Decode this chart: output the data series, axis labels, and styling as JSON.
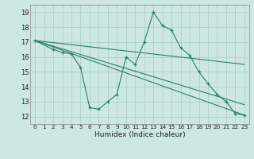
{
  "title": "",
  "xlabel": "Humidex (Indice chaleur)",
  "ylabel": "",
  "bg_color": "#cde8e3",
  "line_color": "#2a7d6e",
  "grid_color": "#afd4cc",
  "xlim": [
    -0.5,
    23.5
  ],
  "ylim": [
    11.5,
    19.5
  ],
  "xticks": [
    0,
    1,
    2,
    3,
    4,
    5,
    6,
    7,
    8,
    9,
    10,
    11,
    12,
    13,
    14,
    15,
    16,
    17,
    18,
    19,
    20,
    21,
    22,
    23
  ],
  "yticks": [
    12,
    13,
    14,
    15,
    16,
    17,
    18,
    19
  ],
  "series_main": {
    "x": [
      0,
      2,
      3,
      4,
      5,
      6,
      7,
      8,
      9,
      10,
      11,
      12,
      13,
      14,
      15,
      16,
      17,
      18,
      19,
      20,
      21,
      22,
      23
    ],
    "y": [
      17.1,
      16.5,
      16.3,
      16.2,
      15.3,
      12.6,
      12.5,
      13.0,
      13.5,
      16.0,
      15.5,
      17.0,
      19.0,
      18.1,
      17.8,
      16.6,
      16.1,
      15.0,
      14.2,
      13.5,
      13.0,
      12.2,
      12.1
    ]
  },
  "series_straight": [
    {
      "x": [
        0,
        23
      ],
      "y": [
        17.1,
        12.1
      ]
    },
    {
      "x": [
        0,
        23
      ],
      "y": [
        17.1,
        12.8
      ]
    },
    {
      "x": [
        0,
        23
      ],
      "y": [
        17.1,
        15.5
      ]
    }
  ]
}
